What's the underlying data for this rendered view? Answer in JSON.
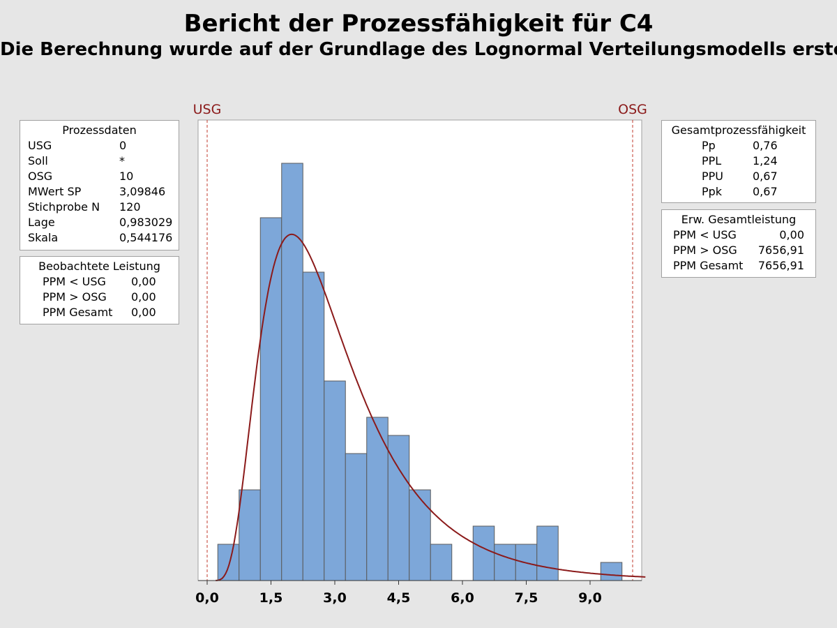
{
  "title": "Bericht der Prozessfähigkeit für C4",
  "subtitle": "Die Berechnung wurde auf der Grundlage des Lognormal Verteilungsmodells erstellt.",
  "prozessdaten": {
    "header": "Prozessdaten",
    "rows": [
      {
        "label": "USG",
        "value": "0"
      },
      {
        "label": "Soll",
        "value": "*"
      },
      {
        "label": "OSG",
        "value": "10"
      },
      {
        "label": "MWert SP",
        "value": "3,09846"
      },
      {
        "label": "Stichprobe N",
        "value": "120"
      },
      {
        "label": "Lage",
        "value": "0,983029"
      },
      {
        "label": "Skala",
        "value": "0,544176"
      }
    ]
  },
  "beobachtet": {
    "header": "Beobachtete Leistung",
    "rows": [
      {
        "label": "PPM < USG",
        "value": "0,00"
      },
      {
        "label": "PPM > OSG",
        "value": "0,00"
      },
      {
        "label": "PPM Gesamt",
        "value": "0,00"
      }
    ]
  },
  "gesamt": {
    "header": "Gesamtprozessfähigkeit",
    "rows": [
      {
        "label": "Pp",
        "value": "0,76"
      },
      {
        "label": "PPL",
        "value": "1,24"
      },
      {
        "label": "PPU",
        "value": "0,67"
      },
      {
        "label": "Ppk",
        "value": "0,67"
      }
    ]
  },
  "erwartet": {
    "header": "Erw. Gesamtleistung",
    "rows": [
      {
        "label": "PPM < USG",
        "value": "0,00"
      },
      {
        "label": "PPM > OSG",
        "value": "7656,91"
      },
      {
        "label": "PPM Gesamt",
        "value": "7656,91"
      }
    ]
  },
  "colors": {
    "bar_fill": "#7da7d9",
    "bar_stroke": "#5a5a5a",
    "curve": "#8b1a1a",
    "spec_line": "#c0392b",
    "spec_label": "#8b1a1a"
  },
  "chart_data": {
    "type": "bar",
    "subtype": "histogram_with_lognormal_fit",
    "xlim": [
      0,
      10.3
    ],
    "ylim": [
      0,
      26
    ],
    "bin_width": 0.5,
    "bins": [
      {
        "start": 0.25,
        "end": 0.75,
        "count": 2
      },
      {
        "start": 0.75,
        "end": 1.25,
        "count": 5
      },
      {
        "start": 1.25,
        "end": 1.75,
        "count": 20
      },
      {
        "start": 1.75,
        "end": 2.25,
        "count": 23
      },
      {
        "start": 2.25,
        "end": 2.75,
        "count": 17
      },
      {
        "start": 2.75,
        "end": 3.25,
        "count": 11
      },
      {
        "start": 3.25,
        "end": 3.75,
        "count": 7
      },
      {
        "start": 3.75,
        "end": 4.25,
        "count": 9
      },
      {
        "start": 4.25,
        "end": 4.75,
        "count": 8
      },
      {
        "start": 4.75,
        "end": 5.25,
        "count": 5
      },
      {
        "start": 5.25,
        "end": 5.75,
        "count": 2
      },
      {
        "start": 5.75,
        "end": 6.25,
        "count": 0
      },
      {
        "start": 6.25,
        "end": 6.75,
        "count": 3
      },
      {
        "start": 6.75,
        "end": 7.25,
        "count": 2
      },
      {
        "start": 7.25,
        "end": 7.75,
        "count": 2
      },
      {
        "start": 7.75,
        "end": 8.25,
        "count": 3
      },
      {
        "start": 8.25,
        "end": 8.75,
        "count": 0
      },
      {
        "start": 8.75,
        "end": 9.25,
        "count": 0
      },
      {
        "start": 9.25,
        "end": 9.75,
        "count": 1
      }
    ],
    "fit": {
      "distribution": "lognormal",
      "location": 0.983029,
      "scale": 0.544176,
      "n": 120
    },
    "x_ticks": [
      0,
      1.5,
      3.0,
      4.5,
      6.0,
      7.5,
      9.0
    ],
    "x_tick_labels": [
      "0,0",
      "1,5",
      "3,0",
      "4,5",
      "6,0",
      "7,5",
      "9,0"
    ],
    "spec_limits": [
      {
        "name": "USG",
        "value": 0
      },
      {
        "name": "OSG",
        "value": 10
      }
    ]
  }
}
